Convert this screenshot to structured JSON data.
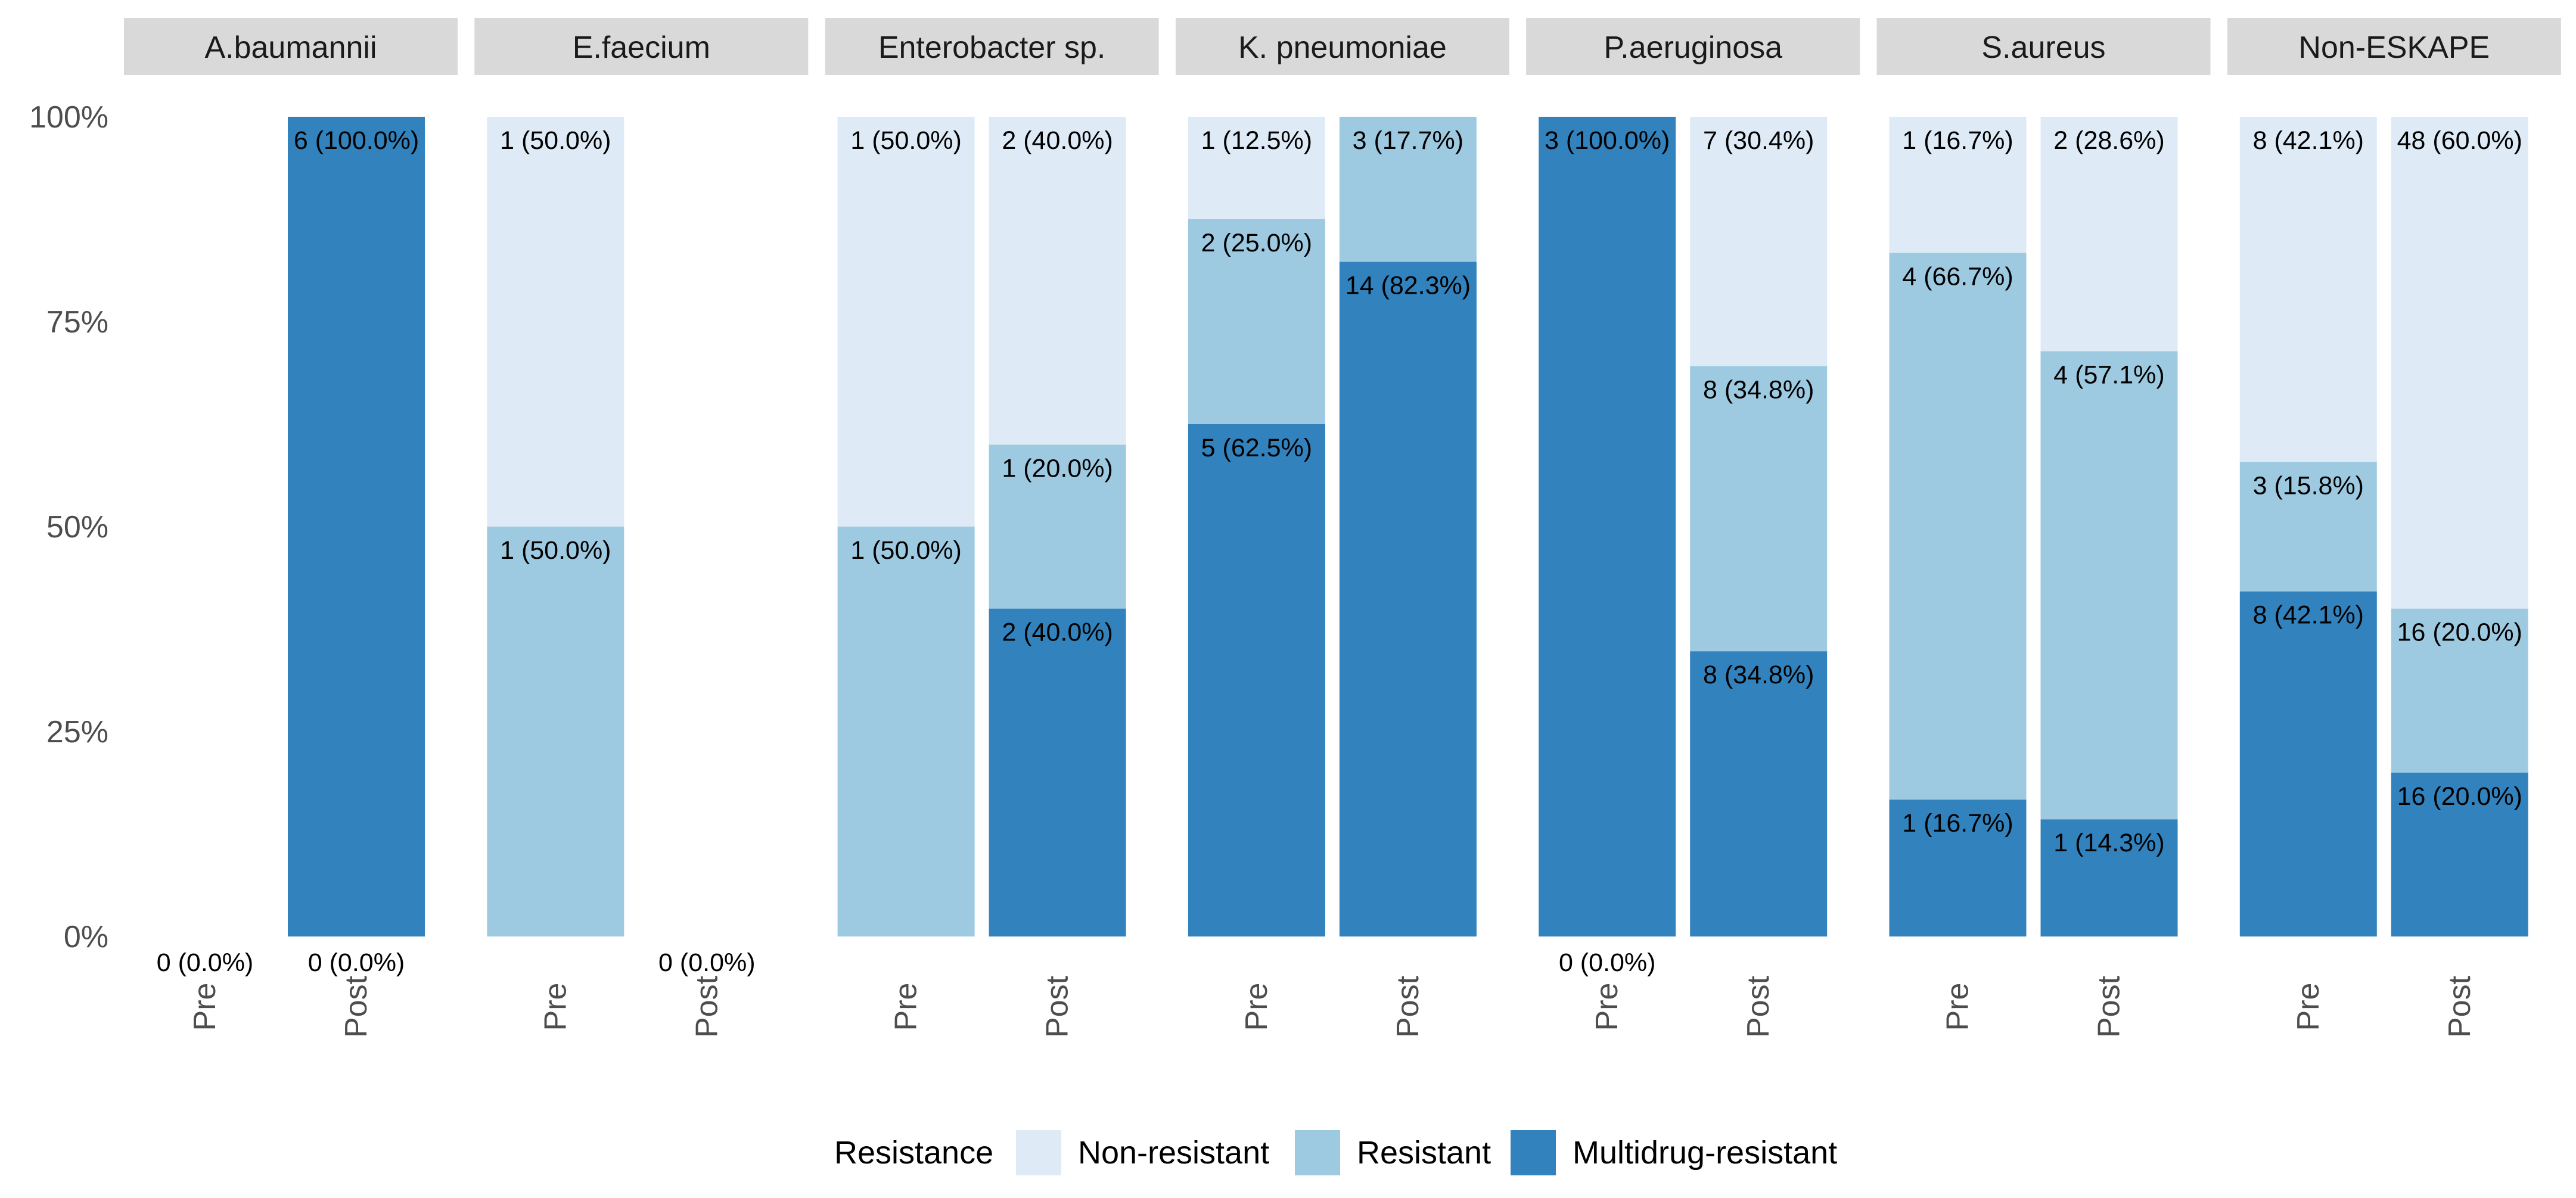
{
  "chart_data": {
    "type": "bar",
    "stacked": true,
    "y_scale": "percent",
    "ylim": [
      0,
      100
    ],
    "y_ticks": [
      "0%",
      "25%",
      "50%",
      "75%",
      "100%"
    ],
    "x_categories": [
      "Pre",
      "Post"
    ],
    "legend": {
      "title": "Resistance",
      "placement": "bottom",
      "entries": [
        {
          "name": "Non-resistant",
          "color": "#deebf7"
        },
        {
          "name": "Resistant",
          "color": "#9ecae1"
        },
        {
          "name": "Multidrug-resistant",
          "color": "#3182bd"
        }
      ]
    },
    "facets": [
      {
        "title": "A.baumannii",
        "bars": [
          {
            "x": "Pre",
            "segments": [],
            "labels": [
              {
                "text": "0 (0.0%)",
                "y": 0
              }
            ]
          },
          {
            "x": "Post",
            "segments": [
              {
                "series": "Multidrug-resistant",
                "from": 0,
                "to": 100
              }
            ],
            "labels": [
              {
                "text": "6 (100.0%)",
                "y": 100
              },
              {
                "text": "0 (0.0%)",
                "y": 0
              }
            ]
          }
        ]
      },
      {
        "title": "E.faecium",
        "bars": [
          {
            "x": "Pre",
            "segments": [
              {
                "series": "Resistant",
                "from": 0,
                "to": 50
              },
              {
                "series": "Non-resistant",
                "from": 50,
                "to": 100
              }
            ],
            "labels": [
              {
                "text": "1 (50.0%)",
                "y": 100
              },
              {
                "text": "1 (50.0%)",
                "y": 50
              }
            ]
          },
          {
            "x": "Post",
            "segments": [],
            "labels": [
              {
                "text": "0 (0.0%)",
                "y": 0
              }
            ]
          }
        ]
      },
      {
        "title": "Enterobacter sp.",
        "bars": [
          {
            "x": "Pre",
            "segments": [
              {
                "series": "Resistant",
                "from": 0,
                "to": 50
              },
              {
                "series": "Non-resistant",
                "from": 50,
                "to": 100
              }
            ],
            "labels": [
              {
                "text": "1 (50.0%)",
                "y": 100
              },
              {
                "text": "1 (50.0%)",
                "y": 50
              }
            ]
          },
          {
            "x": "Post",
            "segments": [
              {
                "series": "Multidrug-resistant",
                "from": 0,
                "to": 40
              },
              {
                "series": "Resistant",
                "from": 40,
                "to": 60
              },
              {
                "series": "Non-resistant",
                "from": 60,
                "to": 100
              }
            ],
            "labels": [
              {
                "text": "2 (40.0%)",
                "y": 100
              },
              {
                "text": "1 (20.0%)",
                "y": 60
              },
              {
                "text": "2 (40.0%)",
                "y": 40
              }
            ]
          }
        ]
      },
      {
        "title": "K. pneumoniae",
        "bars": [
          {
            "x": "Pre",
            "segments": [
              {
                "series": "Multidrug-resistant",
                "from": 0,
                "to": 62.5
              },
              {
                "series": "Resistant",
                "from": 62.5,
                "to": 87.5
              },
              {
                "series": "Non-resistant",
                "from": 87.5,
                "to": 100
              }
            ],
            "labels": [
              {
                "text": "1 (12.5%)",
                "y": 100
              },
              {
                "text": "2 (25.0%)",
                "y": 87.5
              },
              {
                "text": "5 (62.5%)",
                "y": 62.5
              }
            ]
          },
          {
            "x": "Post",
            "segments": [
              {
                "series": "Multidrug-resistant",
                "from": 0,
                "to": 82.3
              },
              {
                "series": "Resistant",
                "from": 82.3,
                "to": 100
              }
            ],
            "labels": [
              {
                "text": "3 (17.7%)",
                "y": 100
              },
              {
                "text": "14 (82.3%)",
                "y": 82.3
              }
            ]
          }
        ]
      },
      {
        "title": "P.aeruginosa",
        "bars": [
          {
            "x": "Pre",
            "segments": [
              {
                "series": "Multidrug-resistant",
                "from": 0,
                "to": 100
              }
            ],
            "labels": [
              {
                "text": "3 (100.0%)",
                "y": 100
              },
              {
                "text": "0 (0.0%)",
                "y": 0
              }
            ]
          },
          {
            "x": "Post",
            "segments": [
              {
                "series": "Multidrug-resistant",
                "from": 0,
                "to": 34.8
              },
              {
                "series": "Resistant",
                "from": 34.8,
                "to": 69.6
              },
              {
                "series": "Non-resistant",
                "from": 69.6,
                "to": 100
              }
            ],
            "labels": [
              {
                "text": "7 (30.4%)",
                "y": 100
              },
              {
                "text": "8 (34.8%)",
                "y": 69.6
              },
              {
                "text": "8 (34.8%)",
                "y": 34.8
              }
            ]
          }
        ]
      },
      {
        "title": "S.aureus",
        "bars": [
          {
            "x": "Pre",
            "segments": [
              {
                "series": "Multidrug-resistant",
                "from": 0,
                "to": 16.7
              },
              {
                "series": "Resistant",
                "from": 16.7,
                "to": 83.4
              },
              {
                "series": "Non-resistant",
                "from": 83.4,
                "to": 100
              }
            ],
            "labels": [
              {
                "text": "1 (16.7%)",
                "y": 100
              },
              {
                "text": "4 (66.7%)",
                "y": 83.4
              },
              {
                "text": "1 (16.7%)",
                "y": 16.7
              }
            ]
          },
          {
            "x": "Post",
            "segments": [
              {
                "series": "Multidrug-resistant",
                "from": 0,
                "to": 14.3
              },
              {
                "series": "Resistant",
                "from": 14.3,
                "to": 71.4
              },
              {
                "series": "Non-resistant",
                "from": 71.4,
                "to": 100
              }
            ],
            "labels": [
              {
                "text": "2 (28.6%)",
                "y": 100
              },
              {
                "text": "4 (57.1%)",
                "y": 71.4
              },
              {
                "text": "1 (14.3%)",
                "y": 14.3
              }
            ]
          }
        ]
      },
      {
        "title": "Non-ESKAPE",
        "bars": [
          {
            "x": "Pre",
            "segments": [
              {
                "series": "Multidrug-resistant",
                "from": 0,
                "to": 42.1
              },
              {
                "series": "Resistant",
                "from": 42.1,
                "to": 57.9
              },
              {
                "series": "Non-resistant",
                "from": 57.9,
                "to": 100
              }
            ],
            "labels": [
              {
                "text": "8 (42.1%)",
                "y": 100
              },
              {
                "text": "3 (15.8%)",
                "y": 57.9
              },
              {
                "text": "8 (42.1%)",
                "y": 42.1
              }
            ]
          },
          {
            "x": "Post",
            "segments": [
              {
                "series": "Multidrug-resistant",
                "from": 0,
                "to": 20
              },
              {
                "series": "Resistant",
                "from": 20,
                "to": 40
              },
              {
                "series": "Non-resistant",
                "from": 40,
                "to": 100
              }
            ],
            "labels": [
              {
                "text": "48 (60.0%)",
                "y": 100
              },
              {
                "text": "16 (20.0%)",
                "y": 40
              },
              {
                "text": "16 (20.0%)",
                "y": 20
              }
            ]
          }
        ]
      }
    ]
  }
}
